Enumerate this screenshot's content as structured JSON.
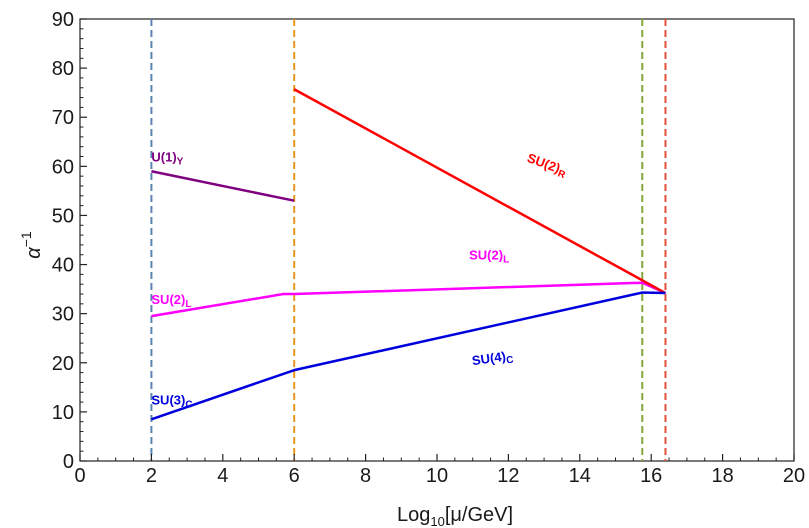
{
  "chart_data": {
    "type": "line",
    "title": "",
    "xlabel": "Log",
    "xlabel_sub": "10",
    "xlabel_suffix": "[μ/GeV]",
    "ylabel": "α",
    "ylabel_sup": "−1",
    "xlim": [
      0,
      20
    ],
    "ylim": [
      0,
      90
    ],
    "xticks": [
      0,
      2,
      4,
      6,
      8,
      10,
      12,
      14,
      16,
      18,
      20
    ],
    "yticks": [
      0,
      10,
      20,
      30,
      40,
      50,
      60,
      70,
      80,
      90
    ],
    "grid": false,
    "series": [
      {
        "color": "#800080",
        "points": [
          [
            2,
            59
          ],
          [
            6,
            53
          ]
        ],
        "label": {
          "main": "U(1)",
          "sub": "Y",
          "x": 2.0,
          "y": 61,
          "rotate": 0
        }
      },
      {
        "color": "#ff00ff",
        "points": [
          [
            2,
            29.5
          ],
          [
            5.7,
            34
          ],
          [
            6,
            34
          ],
          [
            15.75,
            36.3
          ],
          [
            16.4,
            34.2
          ]
        ],
        "label": {
          "main": "SU(2)",
          "sub": "L",
          "x": 2.0,
          "y": 32,
          "rotate": 0
        },
        "label2": {
          "main": "SU(2)",
          "sub": "L",
          "x": 10.9,
          "y": 41,
          "rotate": 0
        }
      },
      {
        "color": "#ff0000",
        "points": [
          [
            6,
            75.7
          ],
          [
            16.4,
            34.2
          ]
        ],
        "label": {
          "main": "SU(2)",
          "sub": "R",
          "x": 12.5,
          "y": 61,
          "rotate": 20
        }
      },
      {
        "color": "#0000dd",
        "points": [
          [
            2,
            8.5
          ],
          [
            6,
            18.5
          ],
          [
            15.75,
            34.3
          ],
          [
            16.4,
            34.2
          ]
        ],
        "label": {
          "main": "SU(3)",
          "sub": "C",
          "x": 2.0,
          "y": 11.5,
          "rotate": 0
        },
        "label2": {
          "main": "SU(4)",
          "sub": "C",
          "x": 11.0,
          "y": 19.5,
          "rotate": -8
        }
      }
    ],
    "vlines": [
      {
        "x": 2,
        "color": "#5b84b1"
      },
      {
        "x": 6,
        "color": "#e8971e"
      },
      {
        "x": 15.75,
        "color": "#86a839"
      },
      {
        "x": 16.4,
        "color": "#e0523a"
      }
    ]
  }
}
